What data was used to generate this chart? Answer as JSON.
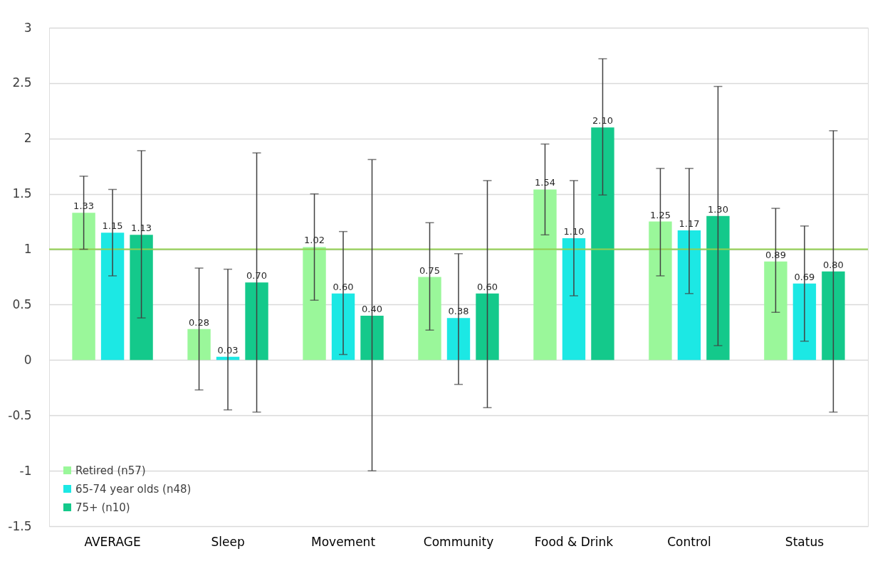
{
  "chart_data": {
    "type": "bar",
    "categories": [
      "AVERAGE",
      "Sleep",
      "Movement",
      "Community",
      "Food & Drink",
      "Control",
      "Status"
    ],
    "series": [
      {
        "name": "Retired (n57)",
        "color": "#9af79a",
        "values": [
          1.33,
          0.28,
          1.02,
          0.75,
          1.54,
          1.25,
          0.89
        ],
        "value_labels": [
          "1.33",
          "0.28",
          "1.02",
          "0.75",
          "1.54",
          "1.25",
          "0.89"
        ],
        "errors": [
          [
            1.0,
            1.66
          ],
          [
            -0.27,
            0.83
          ],
          [
            0.54,
            1.5
          ],
          [
            0.27,
            1.24
          ],
          [
            1.13,
            1.95
          ],
          [
            0.76,
            1.73
          ],
          [
            0.43,
            1.37
          ]
        ]
      },
      {
        "name": "65-74 year olds (n48)",
        "color": "#1ce8e4",
        "values": [
          1.15,
          0.03,
          0.6,
          0.38,
          1.1,
          1.17,
          0.69
        ],
        "value_labels": [
          "1.15",
          "0.03",
          "0.60",
          "0.38",
          "1.10",
          "1.17",
          "0.69"
        ],
        "errors": [
          [
            0.76,
            1.54
          ],
          [
            -0.45,
            0.82
          ],
          [
            0.05,
            1.16
          ],
          [
            -0.22,
            0.96
          ],
          [
            0.58,
            1.62
          ],
          [
            0.6,
            1.73
          ],
          [
            0.17,
            1.21
          ]
        ]
      },
      {
        "name": "75+ (n10)",
        "color": "#14c98b",
        "values": [
          1.13,
          0.7,
          0.4,
          0.6,
          2.1,
          1.3,
          0.8
        ],
        "value_labels": [
          "1.13",
          "0.70",
          "0.40",
          "0.60",
          "2.10",
          "1.30",
          "0.80"
        ],
        "errors": [
          [
            0.38,
            1.89
          ],
          [
            -0.47,
            1.87
          ],
          [
            -1.0,
            1.81
          ],
          [
            -0.43,
            1.62
          ],
          [
            1.49,
            2.72
          ],
          [
            0.13,
            2.47
          ],
          [
            -0.47,
            2.07
          ]
        ]
      }
    ],
    "ylim": [
      -1.5,
      3
    ],
    "yticks": [
      -1.5,
      -1,
      -0.5,
      0,
      0.5,
      1,
      1.5,
      2,
      2.5,
      3
    ],
    "ref_lines": [
      {
        "axis": "y",
        "value": 1,
        "color": "#92d050"
      }
    ],
    "grid": "y",
    "legend": "bottom left"
  }
}
